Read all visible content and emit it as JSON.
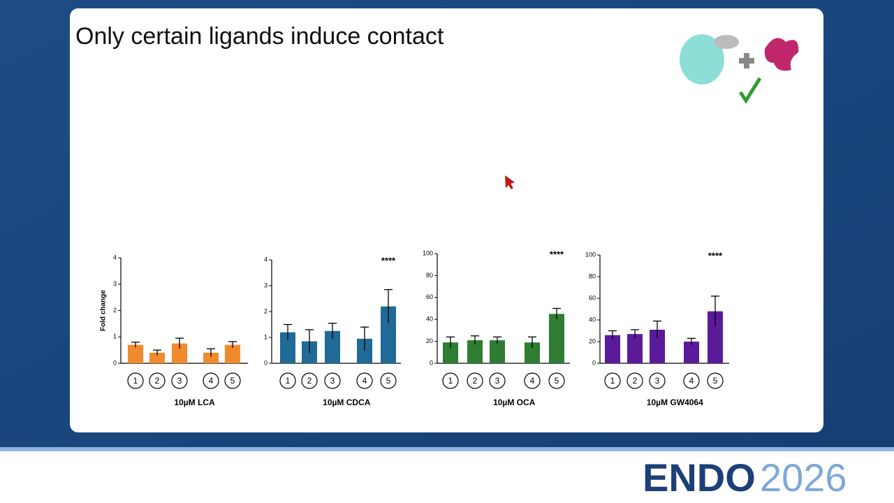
{
  "slide_title": "Only certain ligands induce contact",
  "logo": {
    "name": "ENDO",
    "year": "2026"
  },
  "chart_data": [
    {
      "type": "bar",
      "xlabel": "10µM LCA",
      "ylabel": "Fold change",
      "categories": [
        "1",
        "2",
        "3",
        "4",
        "5"
      ],
      "values": [
        0.7,
        0.4,
        0.75,
        0.4,
        0.7
      ],
      "errors": [
        0.1,
        0.1,
        0.2,
        0.15,
        0.12
      ],
      "color": "#f08a2c",
      "ylim": [
        0,
        4
      ],
      "yticks": [
        0,
        1,
        2,
        3,
        4
      ],
      "significance": [
        null,
        null,
        null,
        null,
        null
      ]
    },
    {
      "type": "bar",
      "xlabel": "10µM CDCA",
      "categories": [
        "1",
        "2",
        "3",
        "4",
        "5"
      ],
      "values": [
        1.2,
        0.85,
        1.25,
        0.95,
        2.2
      ],
      "errors": [
        0.3,
        0.45,
        0.3,
        0.45,
        0.65
      ],
      "color": "#1f6a96",
      "ylim": [
        0,
        4
      ],
      "yticks": [
        0,
        1,
        2,
        3,
        4
      ],
      "significance": [
        null,
        null,
        null,
        null,
        "****"
      ]
    },
    {
      "type": "bar",
      "xlabel": "10µM OCA",
      "categories": [
        "1",
        "2",
        "3",
        "4",
        "5"
      ],
      "values": [
        19,
        21,
        21,
        19,
        45
      ],
      "errors": [
        5,
        4,
        3,
        5,
        5
      ],
      "color": "#2e7d32",
      "ylim": [
        0,
        100
      ],
      "yticks": [
        0,
        20,
        40,
        60,
        80,
        100
      ],
      "significance": [
        null,
        null,
        null,
        null,
        "****"
      ]
    },
    {
      "type": "bar",
      "xlabel": "10µM GW4064",
      "categories": [
        "1",
        "2",
        "3",
        "4",
        "5"
      ],
      "values": [
        26,
        27,
        31,
        20,
        48
      ],
      "errors": [
        4,
        4,
        8,
        3,
        14
      ],
      "color": "#5b1a9a",
      "ylim": [
        0,
        100
      ],
      "yticks": [
        0,
        20,
        40,
        60,
        80,
        100
      ],
      "significance": [
        null,
        null,
        null,
        null,
        "****"
      ]
    }
  ]
}
